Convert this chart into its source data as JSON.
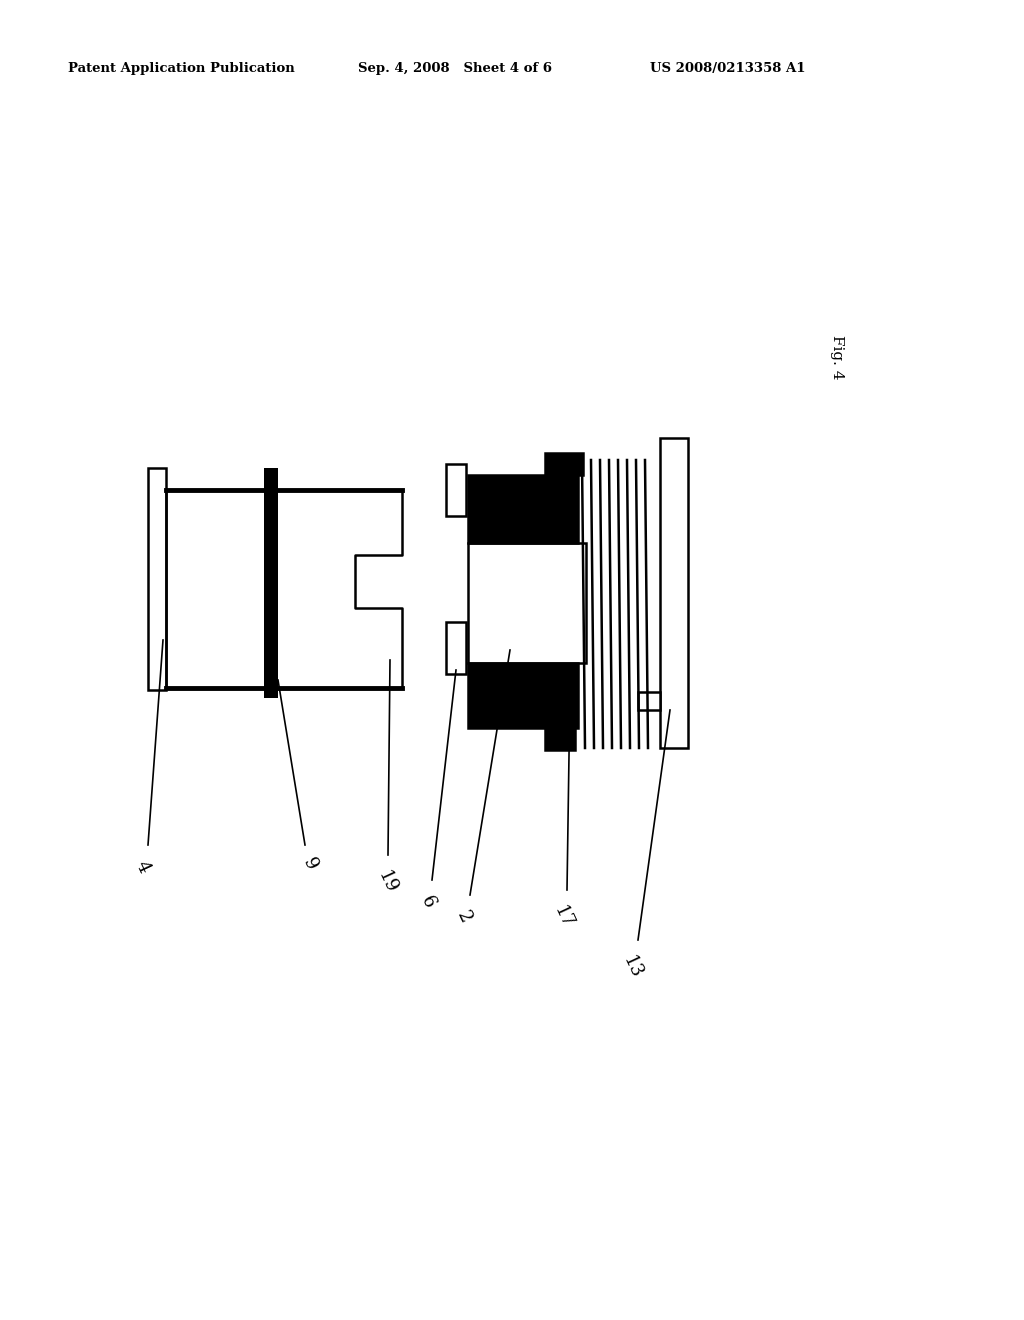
{
  "background_color": "#ffffff",
  "header_left": "Patent Application Publication",
  "header_center": "Sep. 4, 2008   Sheet 4 of 6",
  "header_right": "US 2008/0213358 A1",
  "fig_label": "Fig. 4",
  "labels": [
    "4",
    "9",
    "19",
    "6",
    "2",
    "17",
    "13"
  ]
}
